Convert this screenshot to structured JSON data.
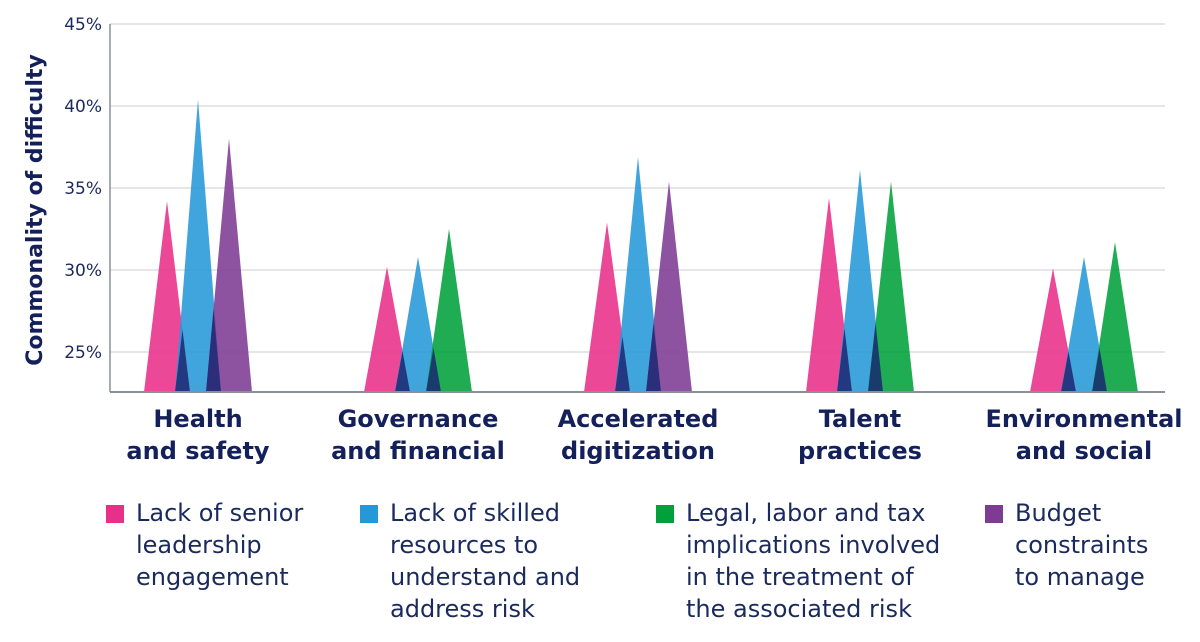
{
  "chart_data": {
    "type": "bar",
    "ylabel": "Commonality of difficulty",
    "xlabel": "",
    "ylim": [
      22.5,
      45
    ],
    "yticks": [
      "45%",
      "40%",
      "35%",
      "30%",
      "25%"
    ],
    "ytick_values": [
      45,
      40,
      35,
      30,
      25
    ],
    "grid": true,
    "legend_position": "bottom",
    "categories": [
      [
        "Health",
        "and safety"
      ],
      [
        "Governance",
        "and financial"
      ],
      [
        "Accelerated",
        "digitization"
      ],
      [
        "Talent",
        "practices"
      ],
      [
        "Environmental",
        "and social"
      ]
    ],
    "series": [
      {
        "name": [
          "Lack of senior",
          "leadership",
          "engagement"
        ],
        "color": "#e8308a",
        "values": [
          34.2,
          30.2,
          32.9,
          34.4,
          30.1
        ]
      },
      {
        "name": [
          "Lack of skilled",
          "resources to",
          "understand and",
          "address risk"
        ],
        "color": "#2598d8",
        "values": [
          40.4,
          30.8,
          36.9,
          36.1,
          30.8
        ]
      },
      {
        "name": [
          "Legal, labor and tax",
          "implications involved",
          "in the treatment of",
          "the associated risk"
        ],
        "color": "#00a13a",
        "values": [
          null,
          32.5,
          null,
          35.4,
          31.7
        ]
      },
      {
        "name": [
          "Budget",
          "constraints",
          "to manage"
        ],
        "color": "#7e3b93",
        "values": [
          38.0,
          null,
          35.4,
          null,
          null
        ]
      }
    ]
  }
}
